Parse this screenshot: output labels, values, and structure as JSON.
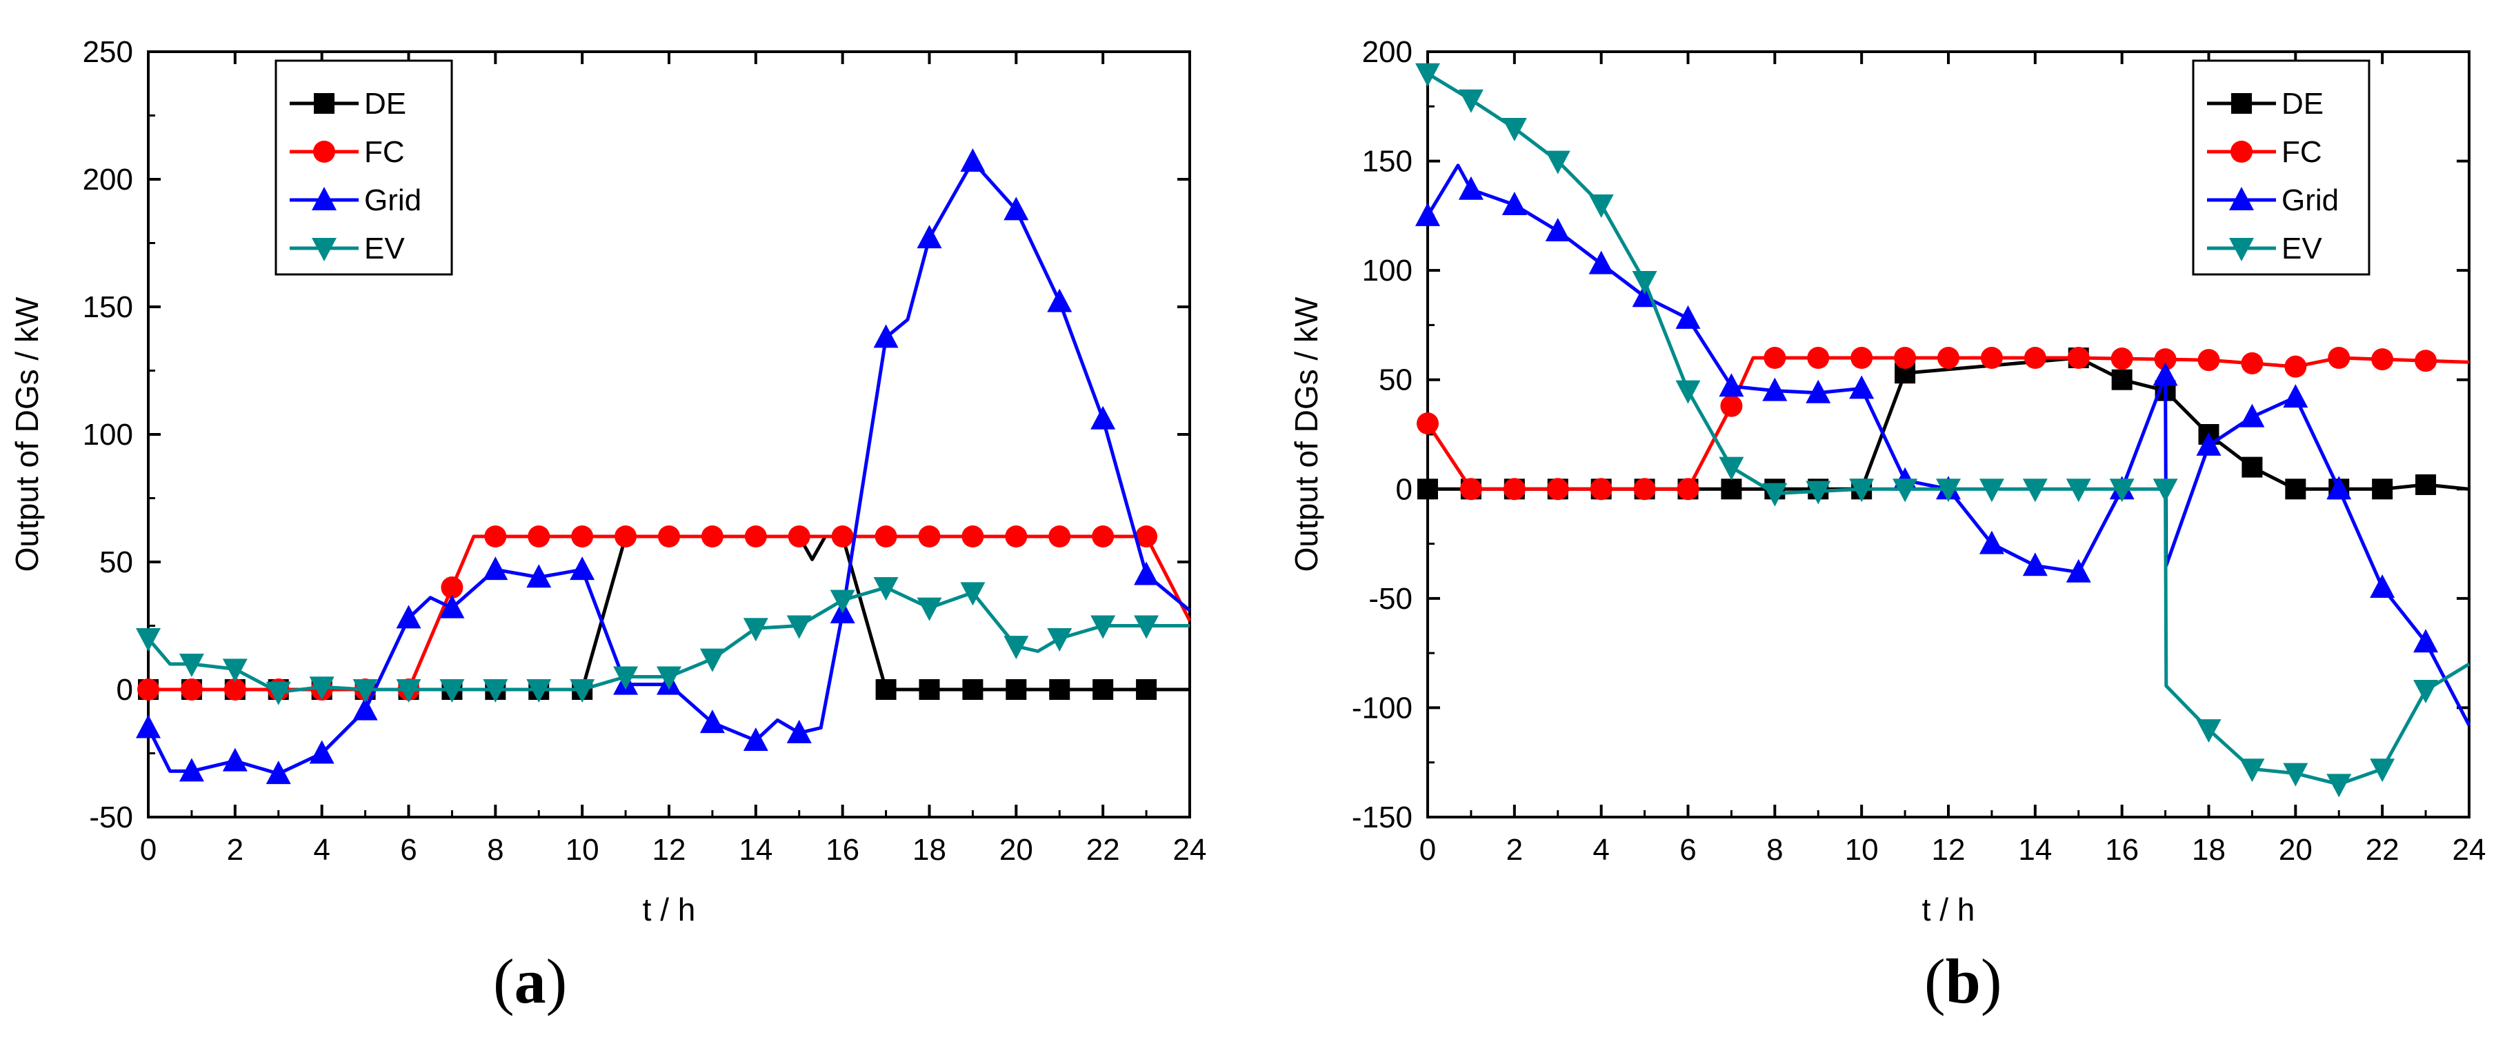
{
  "figure": {
    "charts": [
      {
        "id": "a",
        "panel_label": {
          "open": "(",
          "letter": "a",
          "close": ")"
        },
        "type": "line",
        "xlabel": "t / h",
        "ylabel": "Output of DGs / kW",
        "xlim": [
          0,
          24
        ],
        "ylim": [
          -50,
          250
        ],
        "xticks": [
          0,
          2,
          4,
          6,
          8,
          10,
          12,
          14,
          16,
          18,
          20,
          22,
          24
        ],
        "yticks": [
          -50,
          0,
          50,
          100,
          150,
          200,
          250
        ],
        "legend": {
          "position": "top-left"
        },
        "series": [
          {
            "name": "DE",
            "color": "#000000",
            "marker": "square",
            "x": [
              0,
              10,
              11,
              15,
              15.3,
              15.6,
              16,
              17,
              24
            ],
            "y": [
              0,
              0,
              60,
              60,
              51,
              60,
              60,
              0,
              0
            ]
          },
          {
            "name": "FC",
            "color": "#ff0000",
            "marker": "circle",
            "x": [
              0,
              6,
              7.5,
              23,
              24
            ],
            "y": [
              0,
              0,
              60,
              60,
              27
            ]
          },
          {
            "name": "Grid",
            "color": "#0000ff",
            "marker": "triangle-up",
            "x": [
              0,
              0.5,
              1,
              2,
              3,
              4,
              5,
              6,
              6.5,
              7,
              8,
              9,
              10,
              11,
              12,
              13,
              14,
              14.5,
              15,
              15.5,
              16,
              17,
              17.5,
              18,
              19,
              20,
              21,
              22,
              23,
              24
            ],
            "y": [
              -15,
              -32,
              -32,
              -28,
              -33,
              -25,
              -8,
              28,
              36,
              32,
              47,
              44,
              47,
              2,
              2,
              -13,
              -20,
              -12,
              -17,
              -15,
              30,
              138,
              145,
              177,
              207,
              188,
              152,
              106,
              45,
              31
            ]
          },
          {
            "name": "EV",
            "color": "#008b8b",
            "marker": "triangle-down",
            "x": [
              0,
              0.5,
              1,
              2,
              3,
              4,
              5,
              6,
              7,
              8,
              9,
              10,
              11,
              12,
              13,
              14,
              15,
              16,
              17,
              18,
              19,
              20,
              20.5,
              21,
              22,
              23,
              24
            ],
            "y": [
              20,
              10,
              10,
              8,
              -1,
              1,
              0,
              0,
              0,
              0,
              0,
              0,
              5,
              5,
              12,
              24,
              25,
              35,
              40,
              32,
              38,
              17,
              15,
              20,
              25,
              25,
              25
            ]
          }
        ]
      },
      {
        "id": "b",
        "panel_label": {
          "open": "(",
          "letter": "b",
          "close": ")"
        },
        "type": "line",
        "xlabel": "t / h",
        "ylabel": "Output of DGs / kW",
        "xlim": [
          0,
          24
        ],
        "ylim": [
          -150,
          200
        ],
        "xticks": [
          0,
          2,
          4,
          6,
          8,
          10,
          12,
          14,
          16,
          18,
          20,
          22,
          24
        ],
        "yticks": [
          -150,
          -100,
          -50,
          0,
          50,
          100,
          150,
          200
        ],
        "legend": {
          "position": "top-right"
        },
        "series": [
          {
            "name": "DE",
            "color": "#000000",
            "marker": "square",
            "x": [
              0,
              10,
              11,
              15,
              16,
              17,
              18,
              19,
              20,
              21,
              22,
              23,
              24
            ],
            "y": [
              0,
              0,
              53,
              60,
              50,
              45,
              25,
              10,
              0,
              0,
              0,
              2,
              0
            ]
          },
          {
            "name": "FC",
            "color": "#ff0000",
            "marker": "circle",
            "x": [
              0,
              1,
              6,
              7,
              7.5,
              15,
              18,
              20,
              21,
              24
            ],
            "y": [
              30,
              0,
              0,
              38,
              60,
              60,
              59,
              56,
              60,
              58
            ]
          },
          {
            "name": "Grid",
            "color": "#0000ff",
            "marker": "triangle-up",
            "x": [
              0,
              0.7,
              1,
              2,
              3,
              4,
              5,
              6,
              7,
              8,
              9,
              10,
              11,
              12,
              13,
              14,
              15,
              16,
              17,
              17.02,
              18,
              19,
              20,
              21,
              22,
              23,
              24
            ],
            "y": [
              125,
              148,
              137,
              130,
              118,
              103,
              88,
              78,
              47,
              45,
              44,
              46,
              4,
              0,
              -25,
              -35,
              -38,
              0,
              52,
              -35,
              20,
              33,
              42,
              0,
              -45,
              -70,
              -108
            ]
          },
          {
            "name": "EV",
            "color": "#008b8b",
            "marker": "triangle-down",
            "x": [
              0,
              1,
              2,
              3,
              4,
              5,
              6,
              7,
              8,
              9,
              10,
              11,
              12,
              13,
              14,
              15,
              16,
              17,
              17.02,
              18,
              19,
              20,
              21,
              22,
              23,
              24
            ],
            "y": [
              190,
              178,
              165,
              150,
              130,
              95,
              45,
              10,
              -2,
              -1,
              0,
              0,
              0,
              0,
              0,
              0,
              0,
              0,
              -90,
              -110,
              -128,
              -130,
              -135,
              -128,
              -92,
              -80
            ]
          }
        ]
      }
    ]
  }
}
